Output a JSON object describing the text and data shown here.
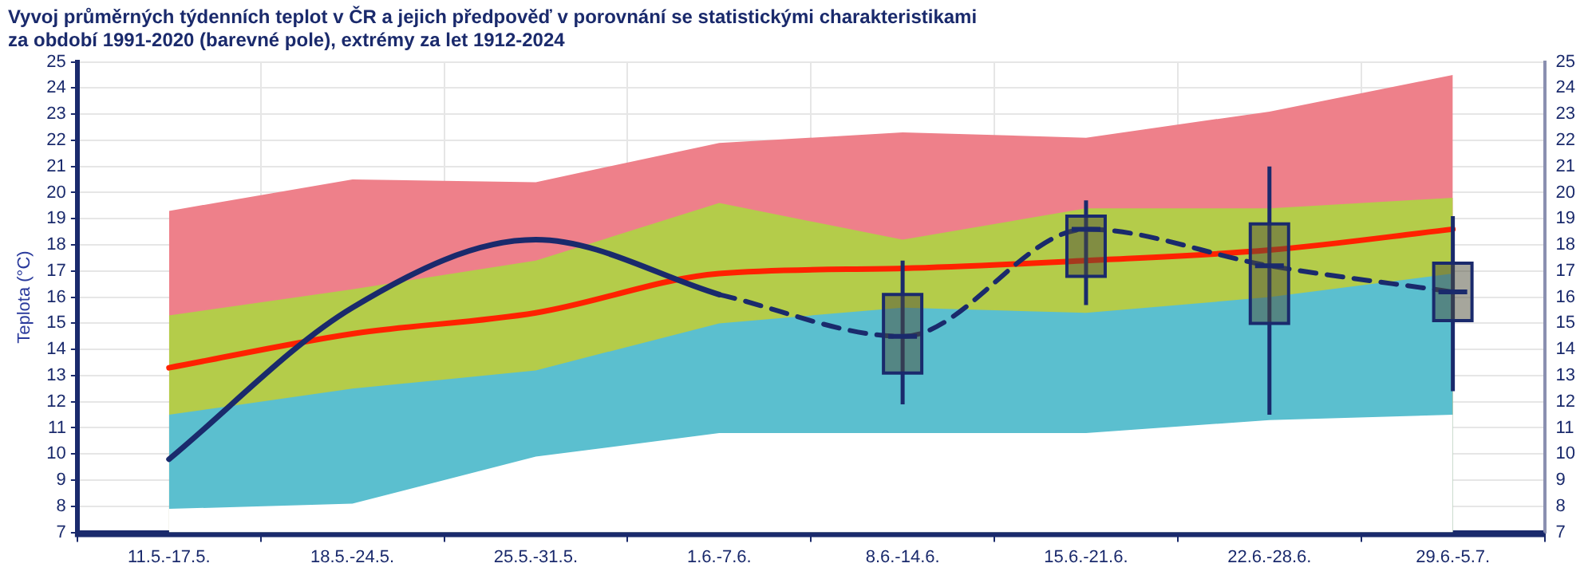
{
  "chart_data": {
    "type": "area",
    "title": "Vyvoj průměrných týdenních teplot v ČR a jejich předpověď v porovnání se statistickými charakteristikami",
    "subtitle": "za období 1991-2020 (barevné pole), extrémy za let 1912-2024",
    "ylabel": "Teplota (°C)",
    "categories": [
      "11.5.-17.5.",
      "18.5.-24.5.",
      "25.5.-31.5.",
      "1.6.-7.6.",
      "8.6.-14.6.",
      "15.6.-21.6.",
      "22.6.-28.6.",
      "29.6.-5.7."
    ],
    "series": [
      {
        "color": "#ee808a",
        "values": [
          19.3,
          20.5,
          20.4,
          21.9,
          22.3,
          22.1,
          23.1,
          24.5
        ]
      },
      {
        "color": "#b4cc4a",
        "values": [
          15.3,
          16.3,
          17.4,
          19.6,
          18.2,
          19.4,
          19.4,
          19.8
        ]
      },
      {
        "color": "#5bbfcf",
        "values": [
          11.5,
          12.5,
          13.2,
          15.0,
          15.6,
          15.4,
          16.0,
          16.9
        ]
      },
      {
        "color": "#ffffff",
        "values": [
          7.9,
          8.1,
          9.9,
          10.8,
          10.8,
          10.8,
          11.3,
          11.5
        ]
      },
      {
        "type": "line",
        "color": "#ff2200",
        "line_style": "solid",
        "values": [
          13.3,
          14.6,
          15.4,
          16.9,
          17.1,
          17.4,
          17.8,
          18.6
        ]
      },
      {
        "type": "line",
        "color": "#1a2a6c",
        "line_style": "solid",
        "values": [
          9.8,
          15.6,
          18.2,
          16.1,
          null,
          null,
          null,
          null
        ]
      },
      {
        "type": "line",
        "color": "#1a2a6c",
        "line_style": "dashed",
        "values": [
          null,
          null,
          null,
          16.1,
          14.5,
          18.6,
          17.2,
          16.2
        ]
      },
      {
        "type": "box",
        "color": "#4d4d3a",
        "boxes": [
          null,
          null,
          null,
          null,
          {
            "low": 11.9,
            "q1": 13.1,
            "median": 14.5,
            "q3": 16.1,
            "high": 17.4
          },
          {
            "low": 15.7,
            "q1": 16.8,
            "median": 18.6,
            "q3": 19.1,
            "high": 19.7
          },
          {
            "low": 11.5,
            "q1": 15.0,
            "median": 17.2,
            "q3": 18.8,
            "high": 21.0
          },
          {
            "low": 12.4,
            "q1": 15.1,
            "median": 16.2,
            "q3": 17.3,
            "high": 19.1
          }
        ]
      }
    ],
    "ylim": [
      7,
      25
    ],
    "yticks": [
      7,
      8,
      9,
      10,
      11,
      12,
      13,
      14,
      15,
      16,
      17,
      18,
      19,
      20,
      21,
      22,
      23,
      24,
      25
    ],
    "y2lim": [
      7,
      25
    ],
    "y2ticks": [
      7,
      8,
      9,
      10,
      11,
      12,
      13,
      14,
      15,
      16,
      17,
      18,
      19,
      20,
      21,
      22,
      23,
      24,
      25
    ],
    "grid": true,
    "legend": false,
    "marker": "none"
  }
}
